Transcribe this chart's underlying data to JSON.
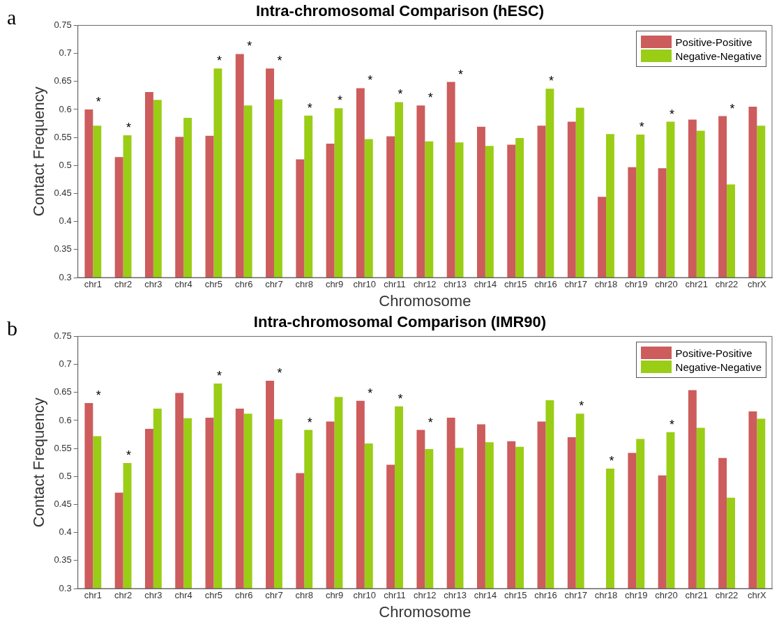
{
  "chart_data": [
    {
      "type": "bar",
      "title": "Intra-chromosomal Comparison (hESC)",
      "xlabel": "Chromosome",
      "ylabel": "Contact Frequency",
      "categories": [
        "chr1",
        "chr2",
        "chr3",
        "chr4",
        "chr5",
        "chr6",
        "chr7",
        "chr8",
        "chr9",
        "chr10",
        "chr11",
        "chr12",
        "chr13",
        "chr14",
        "chr15",
        "chr16",
        "chr17",
        "chr18",
        "chr19",
        "chr20",
        "chr21",
        "chr22",
        "chrX"
      ],
      "series": [
        {
          "name": "Positive-Positive",
          "color": "#cd5c5c",
          "values": [
            0.6,
            0.515,
            0.631,
            0.551,
            0.553,
            0.699,
            0.673,
            0.511,
            0.539,
            0.638,
            0.552,
            0.607,
            0.649,
            0.569,
            0.537,
            0.571,
            0.578,
            0.444,
            0.497,
            0.495,
            0.582,
            0.588,
            0.605
          ]
        },
        {
          "name": "Negative-Negative",
          "color": "#9acd16",
          "values": [
            0.571,
            0.554,
            0.617,
            0.585,
            0.673,
            0.607,
            0.618,
            0.589,
            0.602,
            0.547,
            0.613,
            0.543,
            0.541,
            0.535,
            0.549,
            0.637,
            0.603,
            0.556,
            0.555,
            0.578,
            0.562,
            0.466,
            0.571
          ]
        }
      ],
      "ylim": [
        0.3,
        0.75
      ],
      "yticks": [
        0.3,
        0.35,
        0.4,
        0.45,
        0.5,
        0.55,
        0.6,
        0.65,
        0.7,
        0.75
      ],
      "grid": false,
      "legend": "top right",
      "annotations": [
        "a",
        {
          "text": "*",
          "x": "chr1",
          "y": 0.6
        },
        {
          "text": "*",
          "x": "chr2",
          "y": 0.554
        },
        {
          "text": "*",
          "x": "chr5",
          "y": 0.673
        },
        {
          "text": "*",
          "x": "chr6",
          "y": 0.699
        },
        {
          "text": "*",
          "x": "chr7",
          "y": 0.673
        },
        {
          "text": "*",
          "x": "chr8",
          "y": 0.589
        },
        {
          "text": "*",
          "x": "chr9",
          "y": 0.602
        },
        {
          "text": "*",
          "x": "chr10",
          "y": 0.638
        },
        {
          "text": "*",
          "x": "chr11",
          "y": 0.613
        },
        {
          "text": "*",
          "x": "chr12",
          "y": 0.607
        },
        {
          "text": "*",
          "x": "chr13",
          "y": 0.649
        },
        {
          "text": "*",
          "x": "chr16",
          "y": 0.637
        },
        {
          "text": "*",
          "x": "chr19",
          "y": 0.555
        },
        {
          "text": "*",
          "x": "chr20",
          "y": 0.578
        },
        {
          "text": "*",
          "x": "chr22",
          "y": 0.588
        }
      ]
    },
    {
      "type": "bar",
      "title": "Intra-chromosomal Comparison (IMR90)",
      "xlabel": "Chromosome",
      "ylabel": "Contact Frequency",
      "categories": [
        "chr1",
        "chr2",
        "chr3",
        "chr4",
        "chr5",
        "chr6",
        "chr7",
        "chr8",
        "chr9",
        "chr10",
        "chr11",
        "chr12",
        "chr13",
        "chr14",
        "chr15",
        "chr16",
        "chr17",
        "chr18",
        "chr19",
        "chr20",
        "chr21",
        "chr22",
        "chrX"
      ],
      "series": [
        {
          "name": "Positive-Positive",
          "color": "#cd5c5c",
          "values": [
            0.631,
            0.471,
            0.585,
            0.649,
            0.605,
            0.621,
            0.671,
            0.506,
            0.598,
            0.635,
            0.521,
            0.583,
            0.605,
            0.593,
            0.563,
            0.598,
            0.57,
            null,
            0.542,
            0.502,
            0.654,
            0.533,
            0.616
          ]
        },
        {
          "name": "Negative-Negative",
          "color": "#9acd16",
          "values": [
            0.572,
            0.524,
            0.621,
            0.604,
            0.666,
            0.612,
            0.602,
            0.583,
            0.642,
            0.559,
            0.625,
            0.549,
            0.551,
            0.561,
            0.553,
            0.636,
            0.612,
            0.514,
            0.567,
            0.579,
            0.587,
            0.462,
            0.603
          ]
        }
      ],
      "ylim": [
        0.3,
        0.75
      ],
      "yticks": [
        0.3,
        0.35,
        0.4,
        0.45,
        0.5,
        0.55,
        0.6,
        0.65,
        0.7,
        0.75
      ],
      "grid": false,
      "legend": "top right",
      "annotations": [
        "b",
        {
          "text": "*",
          "x": "chr1",
          "y": 0.631
        },
        {
          "text": "*",
          "x": "chr2",
          "y": 0.524
        },
        {
          "text": "*",
          "x": "chr5",
          "y": 0.666
        },
        {
          "text": "*",
          "x": "chr7",
          "y": 0.671
        },
        {
          "text": "*",
          "x": "chr8",
          "y": 0.583
        },
        {
          "text": "*",
          "x": "chr10",
          "y": 0.635
        },
        {
          "text": "*",
          "x": "chr11",
          "y": 0.625
        },
        {
          "text": "*",
          "x": "chr12",
          "y": 0.583
        },
        {
          "text": "*",
          "x": "chr17",
          "y": 0.612
        },
        {
          "text": "*",
          "x": "chr18",
          "y": 0.514
        },
        {
          "text": "*",
          "x": "chr20",
          "y": 0.579
        }
      ]
    }
  ]
}
